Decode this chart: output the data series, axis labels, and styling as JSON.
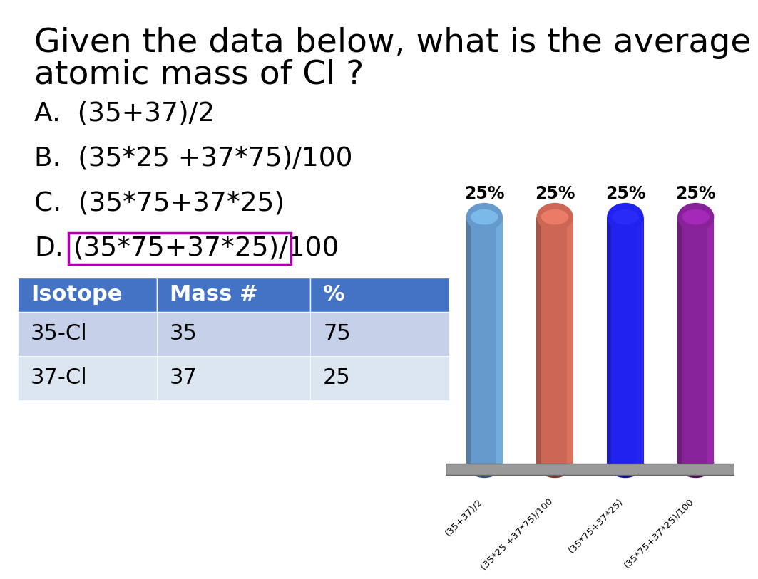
{
  "title_line1": "Given the data below, what is the average",
  "title_line2": "atomic mass of Cl ?",
  "options": [
    {
      "label": "A.",
      "text": "(35+37)/2",
      "highlight": false
    },
    {
      "label": "B.",
      "text": "(35*25 +37*75)/100",
      "highlight": false
    },
    {
      "label": "C.",
      "text": "(35*75+37*25)",
      "highlight": false
    },
    {
      "label": "D.",
      "text": "(35*75+37*25)/100",
      "highlight": true
    }
  ],
  "table_headers": [
    "Isotope",
    "Mass #",
    "%"
  ],
  "table_rows": [
    [
      "35-Cl",
      "35",
      "75"
    ],
    [
      "37-Cl",
      "37",
      "25"
    ]
  ],
  "table_header_bg": "#4472C4",
  "table_row1_bg": "#C5D1E8",
  "table_row2_bg": "#DCE6F1",
  "table_header_text_color": "#FFFFFF",
  "bar_labels": [
    "25%",
    "25%",
    "25%",
    "25%"
  ],
  "bar_colors": [
    "#6699CC",
    "#CC6655",
    "#2222EE",
    "#882299"
  ],
  "bar_x_labels": [
    "(35+37)/2",
    "(35*25 +37*75)/100",
    "(35*75+37*25)",
    "(35*75+37*25)/100"
  ],
  "background_color": "#FFFFFF",
  "highlight_color": "#AA00AA",
  "platform_color": "#999999"
}
